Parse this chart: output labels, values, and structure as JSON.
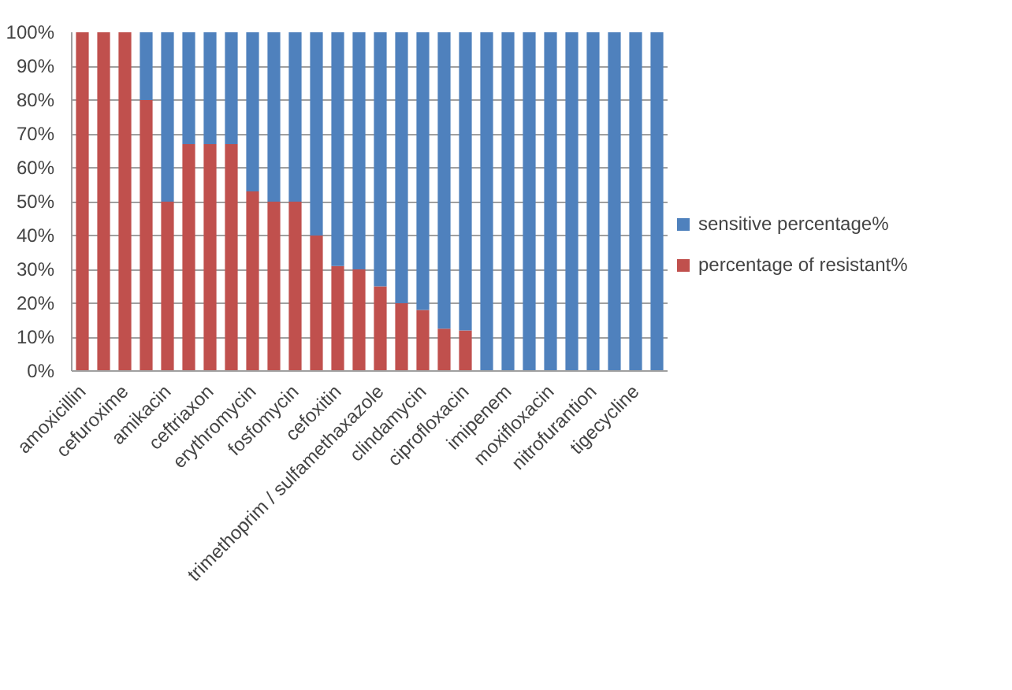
{
  "chart_data": {
    "type": "bar",
    "stacked": true,
    "categories": [
      "amoxicillin",
      null,
      "cefuroxime",
      null,
      "amikacin",
      null,
      "ceftriaxon",
      null,
      "erythromycin",
      null,
      "fosfomycin",
      null,
      "cefoxitin",
      null,
      "trimethoprim / sulfamethaxazole",
      null,
      "clindamycin",
      null,
      "ciprofloxacin",
      null,
      "imipenem",
      null,
      "moxifloxacin",
      null,
      "nitrofurantion",
      null,
      "tigecycline",
      null
    ],
    "series": [
      {
        "name": "percentage of resistant%",
        "color": "#c0504d",
        "values": [
          100,
          100,
          100,
          80,
          50,
          67,
          67,
          67,
          53,
          50,
          50,
          40,
          31,
          30,
          25,
          20,
          18,
          12.5,
          12,
          0,
          0,
          0,
          0,
          0,
          0,
          0,
          0,
          0
        ]
      },
      {
        "name": "sensitive percentage%",
        "color": "#4f81bd",
        "values": [
          0,
          0,
          0,
          20,
          50,
          33,
          33,
          33,
          47,
          50,
          50,
          60,
          69,
          70,
          75,
          80,
          82,
          87.5,
          88,
          100,
          100,
          100,
          100,
          100,
          100,
          100,
          100,
          100
        ]
      }
    ],
    "ylim": [
      0,
      100
    ],
    "yticks": [
      {
        "value": 0,
        "label": "0%"
      },
      {
        "value": 10,
        "label": "10%"
      },
      {
        "value": 20,
        "label": "20%"
      },
      {
        "value": 30,
        "label": "30%"
      },
      {
        "value": 40,
        "label": "40%"
      },
      {
        "value": 50,
        "label": "50%"
      },
      {
        "value": 60,
        "label": "60%"
      },
      {
        "value": 70,
        "label": "70%"
      },
      {
        "value": 80,
        "label": "80%"
      },
      {
        "value": 90,
        "label": "90%"
      },
      {
        "value": 100,
        "label": "100%"
      }
    ],
    "grid": "y",
    "legend": "right"
  }
}
